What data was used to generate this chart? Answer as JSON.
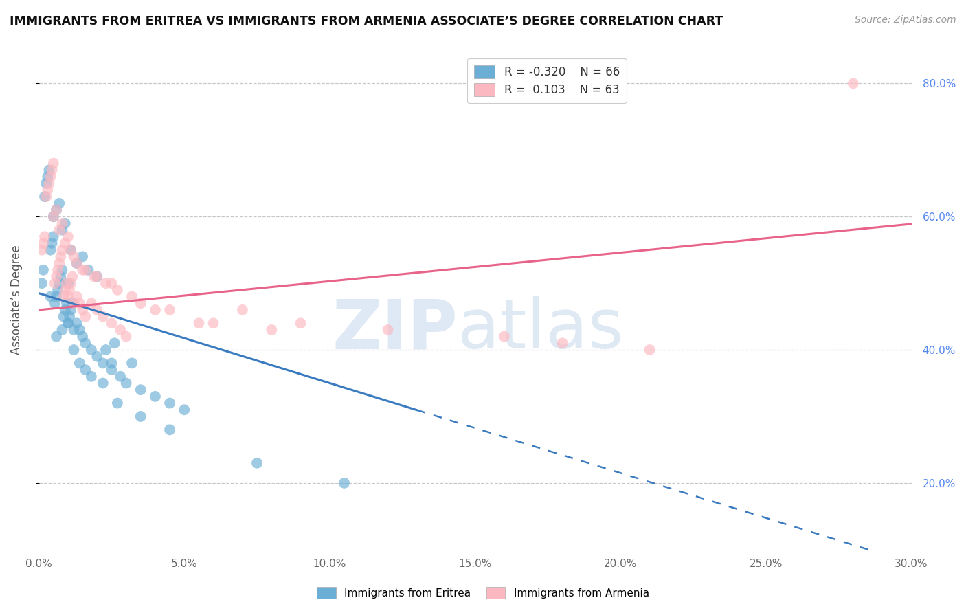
{
  "title": "IMMIGRANTS FROM ERITREA VS IMMIGRANTS FROM ARMENIA ASSOCIATE’S DEGREE CORRELATION CHART",
  "source_text": "Source: ZipAtlas.com",
  "ylabel": "Associate’s Degree",
  "xlim": [
    0.0,
    30.0
  ],
  "ylim": [
    10.0,
    85.0
  ],
  "x_ticks": [
    0.0,
    5.0,
    10.0,
    15.0,
    20.0,
    25.0,
    30.0
  ],
  "y_ticks_right": [
    20.0,
    40.0,
    60.0,
    80.0
  ],
  "legend_r1": "R = -0.320",
  "legend_n1": "N = 66",
  "legend_r2": "R =  0.103",
  "legend_n2": "N = 63",
  "color_eritrea": "#6baed6",
  "color_armenia": "#fcb8c0",
  "color_eritrea_line": "#3a7bbf",
  "color_armenia_line": "#e8638a",
  "watermark_zip": "ZIP",
  "watermark_atlas": "atlas",
  "background_color": "#ffffff",
  "grid_color": "#c8c8c8",
  "eritrea_intercept": 48.5,
  "eritrea_slope": -1.35,
  "armenia_intercept": 46.0,
  "armenia_slope": 0.43,
  "eritrea_solid_xmax": 13.0,
  "eritrea_x": [
    0.1,
    0.15,
    0.2,
    0.25,
    0.3,
    0.35,
    0.4,
    0.45,
    0.5,
    0.55,
    0.6,
    0.65,
    0.7,
    0.75,
    0.8,
    0.85,
    0.9,
    0.95,
    1.0,
    1.05,
    1.1,
    1.15,
    1.2,
    1.3,
    1.4,
    1.5,
    1.6,
    1.8,
    2.0,
    2.2,
    2.5,
    2.8,
    3.0,
    3.5,
    4.0,
    4.5,
    5.0,
    1.0,
    0.5,
    0.6,
    0.7,
    0.8,
    0.9,
    1.1,
    1.3,
    1.5,
    1.7,
    2.0,
    2.3,
    2.6,
    3.2,
    0.4,
    0.6,
    0.8,
    1.0,
    1.2,
    1.4,
    1.6,
    1.8,
    2.2,
    2.7,
    3.5,
    4.5,
    7.5,
    10.5,
    2.5
  ],
  "eritrea_y": [
    50.0,
    52.0,
    63.0,
    65.0,
    66.0,
    67.0,
    55.0,
    56.0,
    57.0,
    47.0,
    48.0,
    49.0,
    50.0,
    51.0,
    52.0,
    45.0,
    46.0,
    47.0,
    44.0,
    45.0,
    46.0,
    47.0,
    43.0,
    44.0,
    43.0,
    42.0,
    41.0,
    40.0,
    39.0,
    38.0,
    37.0,
    36.0,
    35.0,
    34.0,
    33.0,
    32.0,
    31.0,
    50.0,
    60.0,
    61.0,
    62.0,
    58.0,
    59.0,
    55.0,
    53.0,
    54.0,
    52.0,
    51.0,
    40.0,
    41.0,
    38.0,
    48.0,
    42.0,
    43.0,
    44.0,
    40.0,
    38.0,
    37.0,
    36.0,
    35.0,
    32.0,
    30.0,
    28.0,
    23.0,
    20.0,
    38.0
  ],
  "armenia_x": [
    0.1,
    0.15,
    0.2,
    0.25,
    0.3,
    0.35,
    0.4,
    0.45,
    0.5,
    0.55,
    0.6,
    0.65,
    0.7,
    0.75,
    0.8,
    0.85,
    0.9,
    0.95,
    1.0,
    1.05,
    1.1,
    1.15,
    1.2,
    1.3,
    1.4,
    1.5,
    1.6,
    1.8,
    2.0,
    2.2,
    2.5,
    2.8,
    3.0,
    0.5,
    0.6,
    0.7,
    0.8,
    0.9,
    1.0,
    1.2,
    1.5,
    2.0,
    2.5,
    3.5,
    4.5,
    5.5,
    7.0,
    9.0,
    12.0,
    16.0,
    18.0,
    21.0,
    28.0,
    1.1,
    1.3,
    1.6,
    1.9,
    2.3,
    2.7,
    3.2,
    4.0,
    6.0,
    8.0
  ],
  "armenia_y": [
    55.0,
    56.0,
    57.0,
    63.0,
    64.0,
    65.0,
    66.0,
    67.0,
    68.0,
    50.0,
    51.0,
    52.0,
    53.0,
    54.0,
    55.0,
    48.0,
    49.0,
    50.0,
    48.0,
    49.0,
    50.0,
    51.0,
    47.0,
    48.0,
    47.0,
    46.0,
    45.0,
    47.0,
    46.0,
    45.0,
    44.0,
    43.0,
    42.0,
    60.0,
    61.0,
    58.0,
    59.0,
    56.0,
    57.0,
    54.0,
    52.0,
    51.0,
    50.0,
    47.0,
    46.0,
    44.0,
    46.0,
    44.0,
    43.0,
    42.0,
    41.0,
    40.0,
    80.0,
    55.0,
    53.0,
    52.0,
    51.0,
    50.0,
    49.0,
    48.0,
    46.0,
    44.0,
    43.0
  ]
}
